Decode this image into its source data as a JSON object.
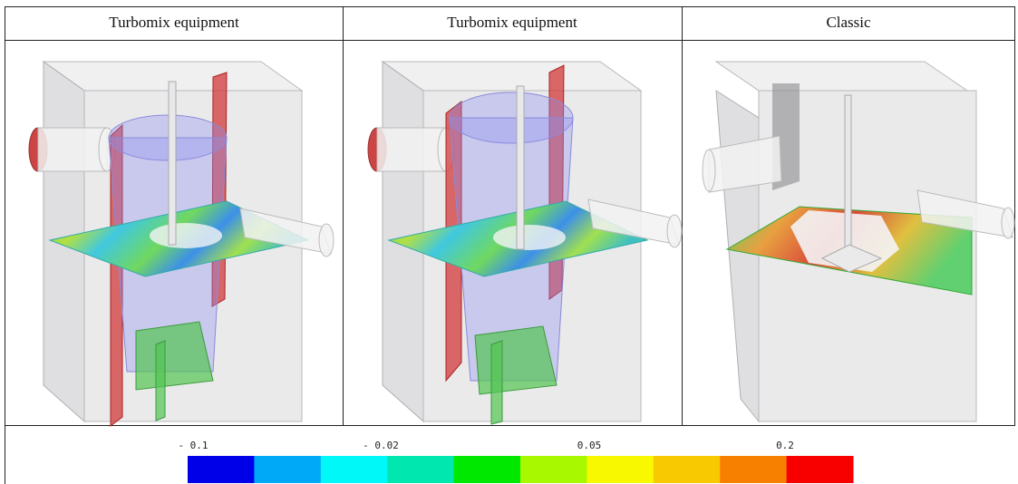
{
  "header": {
    "columns": [
      "Turbomix equipment",
      "Turbomix equipment",
      "Classic"
    ]
  },
  "colorbar": {
    "labels": [
      "- 0.1",
      "- 0.02",
      "0.05",
      "0.2"
    ],
    "colors": [
      "#0000e8",
      "#00a8f8",
      "#00f8f8",
      "#00e8b0",
      "#00e800",
      "#a8f800",
      "#f8f800",
      "#f8c800",
      "#f88000",
      "#f80000"
    ]
  }
}
